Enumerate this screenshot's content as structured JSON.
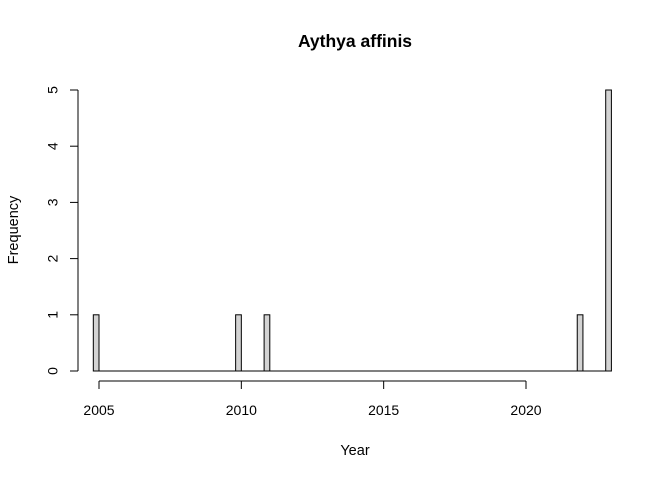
{
  "chart_data": {
    "type": "bar",
    "title": "Aythya affinis",
    "xlabel": "Year",
    "ylabel": "Frequency",
    "bin_width": 0.2,
    "x": [
      2005,
      2010,
      2011,
      2022,
      2023
    ],
    "values": [
      1,
      1,
      1,
      1,
      5
    ],
    "xlim": [
      2005,
      2023
    ],
    "ylim": [
      0,
      5
    ],
    "xticks": [
      2005,
      2010,
      2015,
      2020
    ],
    "yticks": [
      0,
      1,
      2,
      3,
      4,
      5
    ],
    "bar_color": "#d3d3d3",
    "grid": false,
    "legend": "none"
  }
}
